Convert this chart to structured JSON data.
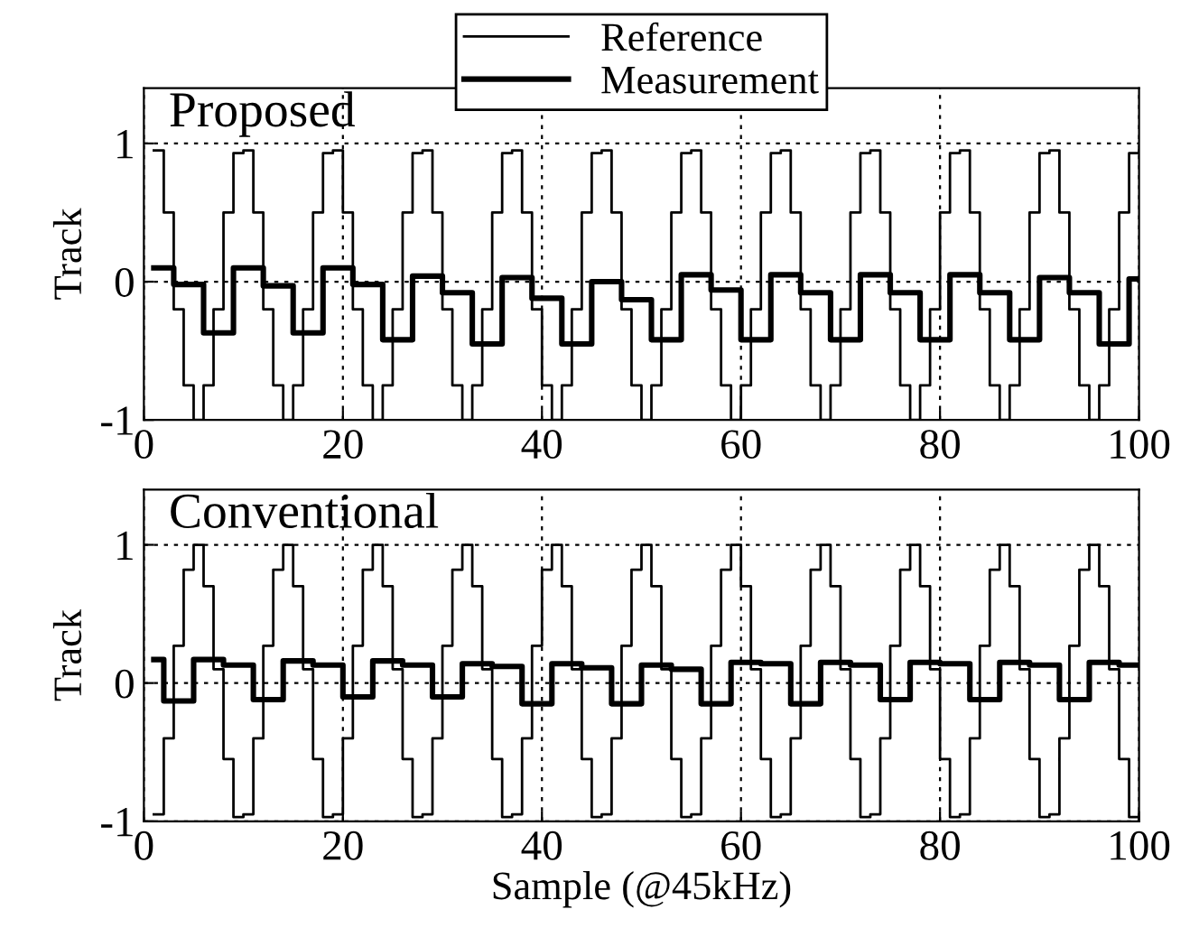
{
  "chart_data": [
    {
      "type": "step",
      "title": "Proposed",
      "ylabel": "Track",
      "xlim": [
        0,
        100
      ],
      "xticks": [
        0,
        20,
        40,
        60,
        80,
        100
      ],
      "ylim": [
        -1,
        1.4
      ],
      "yticks": [
        -1,
        0,
        1
      ],
      "grid": true,
      "legend": "top",
      "x": [
        1,
        2,
        3,
        4,
        5,
        6,
        7,
        8,
        9,
        10,
        11,
        12,
        13,
        14,
        15,
        16,
        17,
        18,
        19,
        20,
        21,
        22,
        23,
        24,
        25,
        26,
        27,
        28,
        29,
        30,
        31,
        32,
        33,
        34,
        35,
        36,
        37,
        38,
        39,
        40,
        41,
        42,
        43,
        44,
        45,
        46,
        47,
        48,
        49,
        50,
        51,
        52,
        53,
        54,
        55,
        56,
        57,
        58,
        59,
        60,
        61,
        62,
        63,
        64,
        65,
        66,
        67,
        68,
        69,
        70,
        71,
        72,
        73,
        74,
        75,
        76,
        77,
        78,
        79,
        80,
        81,
        82,
        83,
        84,
        85,
        86,
        87,
        88,
        89,
        90,
        91,
        92,
        93,
        94,
        95,
        96,
        97,
        98,
        99,
        100
      ],
      "series": [
        {
          "name": "Reference",
          "color": "#000000",
          "values": [
            0.95,
            0.5,
            -0.2,
            -0.75,
            -1,
            -0.75,
            -0.2,
            0.5,
            0.93,
            0.95,
            0.5,
            -0.2,
            -0.75,
            -1,
            -0.75,
            -0.2,
            0.5,
            0.93,
            0.95,
            0.5,
            -0.2,
            -0.75,
            -1,
            -0.75,
            -0.2,
            0.5,
            0.93,
            0.95,
            0.5,
            -0.2,
            -0.75,
            -1,
            -0.75,
            -0.2,
            0.5,
            0.93,
            0.95,
            0.5,
            -0.2,
            -0.75,
            -1,
            -0.75,
            -0.2,
            0.5,
            0.93,
            0.95,
            0.5,
            -0.2,
            -0.75,
            -1,
            -0.75,
            -0.2,
            0.5,
            0.93,
            0.95,
            0.5,
            -0.2,
            -0.75,
            -1,
            -0.75,
            -0.2,
            0.5,
            0.93,
            0.95,
            0.5,
            -0.2,
            -0.75,
            -1,
            -0.75,
            -0.2,
            0.5,
            0.93,
            0.95,
            0.5,
            -0.2,
            -0.75,
            -1,
            -0.75,
            -0.2,
            0.5,
            0.93,
            0.95,
            0.5,
            -0.2,
            -0.75,
            -1,
            -0.75,
            -0.2,
            0.5,
            0.93,
            0.95,
            0.5,
            -0.2,
            -0.75,
            -1,
            -0.75,
            -0.2,
            0.5,
            0.93,
            0.95
          ]
        },
        {
          "name": "Measurement",
          "color": "#000000",
          "values": [
            0.1,
            0.1,
            -0.02,
            -0.02,
            -0.02,
            -0.37,
            -0.37,
            -0.37,
            0.1,
            0.1,
            0.1,
            -0.03,
            -0.03,
            -0.03,
            -0.37,
            -0.37,
            -0.37,
            0.1,
            0.1,
            0.1,
            -0.02,
            -0.02,
            -0.02,
            -0.42,
            -0.42,
            -0.42,
            0.04,
            0.04,
            0.04,
            -0.08,
            -0.08,
            -0.08,
            -0.45,
            -0.45,
            -0.45,
            0.03,
            0.03,
            0.03,
            -0.12,
            -0.12,
            -0.12,
            -0.45,
            -0.45,
            -0.45,
            0.0,
            0.0,
            0.0,
            -0.13,
            -0.13,
            -0.13,
            -0.42,
            -0.42,
            -0.42,
            0.05,
            0.05,
            0.05,
            -0.06,
            -0.06,
            -0.06,
            -0.42,
            -0.42,
            -0.42,
            0.05,
            0.05,
            0.05,
            -0.08,
            -0.08,
            -0.08,
            -0.42,
            -0.42,
            -0.42,
            0.05,
            0.05,
            0.05,
            -0.08,
            -0.08,
            -0.08,
            -0.42,
            -0.42,
            -0.42,
            0.05,
            0.05,
            0.05,
            -0.08,
            -0.08,
            -0.08,
            -0.42,
            -0.42,
            -0.42,
            0.03,
            0.03,
            0.03,
            -0.08,
            -0.08,
            -0.08,
            -0.45,
            -0.45,
            -0.45,
            0.02,
            0.02
          ]
        }
      ]
    },
    {
      "type": "step",
      "title": "Conventional",
      "xlabel": "Sample (@45kHz)",
      "ylabel": "Track",
      "xlim": [
        0,
        100
      ],
      "xticks": [
        0,
        20,
        40,
        60,
        80,
        100
      ],
      "ylim": [
        -1,
        1.4
      ],
      "yticks": [
        -1,
        0,
        1
      ],
      "grid": true,
      "x": [
        1,
        2,
        3,
        4,
        5,
        6,
        7,
        8,
        9,
        10,
        11,
        12,
        13,
        14,
        15,
        16,
        17,
        18,
        19,
        20,
        21,
        22,
        23,
        24,
        25,
        26,
        27,
        28,
        29,
        30,
        31,
        32,
        33,
        34,
        35,
        36,
        37,
        38,
        39,
        40,
        41,
        42,
        43,
        44,
        45,
        46,
        47,
        48,
        49,
        50,
        51,
        52,
        53,
        54,
        55,
        56,
        57,
        58,
        59,
        60,
        61,
        62,
        63,
        64,
        65,
        66,
        67,
        68,
        69,
        70,
        71,
        72,
        73,
        74,
        75,
        76,
        77,
        78,
        79,
        80,
        81,
        82,
        83,
        84,
        85,
        86,
        87,
        88,
        89,
        90,
        91,
        92,
        93,
        94,
        95,
        96,
        97,
        98,
        99,
        100
      ],
      "series": [
        {
          "color": "#000000",
          "values": [
            -0.95,
            -0.4,
            0.27,
            0.82,
            1.0,
            0.7,
            0.1,
            -0.55,
            -0.97,
            -0.95,
            -0.4,
            0.27,
            0.82,
            1.0,
            0.7,
            0.1,
            -0.55,
            -0.97,
            -0.95,
            -0.4,
            0.27,
            0.82,
            1.0,
            0.7,
            0.1,
            -0.55,
            -0.97,
            -0.95,
            -0.4,
            0.27,
            0.82,
            1.0,
            0.7,
            0.1,
            -0.55,
            -0.97,
            -0.95,
            -0.4,
            0.27,
            0.82,
            1.0,
            0.7,
            0.1,
            -0.55,
            -0.97,
            -0.95,
            -0.4,
            0.27,
            0.82,
            1.0,
            0.7,
            0.1,
            -0.55,
            -0.97,
            -0.95,
            -0.4,
            0.27,
            0.82,
            1.0,
            0.7,
            0.1,
            -0.55,
            -0.97,
            -0.95,
            -0.4,
            0.27,
            0.82,
            1.0,
            0.7,
            0.1,
            -0.55,
            -0.97,
            -0.95,
            -0.4,
            0.27,
            0.82,
            1.0,
            0.7,
            0.1,
            -0.55,
            -0.97,
            -0.95,
            -0.4,
            0.27,
            0.82,
            1.0,
            0.7,
            0.1,
            -0.55,
            -0.97,
            -0.95,
            -0.4,
            0.27,
            0.82,
            1.0,
            0.7,
            0.1,
            -0.55,
            -0.97,
            -0.95
          ]
        },
        {
          "color": "#000000",
          "values": [
            0.17,
            -0.13,
            -0.13,
            -0.13,
            0.17,
            0.17,
            0.17,
            0.13,
            0.13,
            0.13,
            -0.12,
            -0.12,
            -0.12,
            0.16,
            0.16,
            0.16,
            0.13,
            0.13,
            0.13,
            -0.1,
            -0.1,
            -0.1,
            0.16,
            0.16,
            0.16,
            0.13,
            0.13,
            0.13,
            -0.1,
            -0.1,
            -0.1,
            0.14,
            0.14,
            0.14,
            0.12,
            0.12,
            0.12,
            -0.15,
            -0.15,
            -0.15,
            0.14,
            0.14,
            0.14,
            0.11,
            0.11,
            0.11,
            -0.15,
            -0.15,
            -0.15,
            0.13,
            0.13,
            0.13,
            0.1,
            0.1,
            0.1,
            -0.15,
            -0.15,
            -0.15,
            0.15,
            0.15,
            0.15,
            0.14,
            0.14,
            0.14,
            -0.15,
            -0.15,
            -0.15,
            0.15,
            0.15,
            0.15,
            0.13,
            0.13,
            0.13,
            -0.12,
            -0.12,
            -0.12,
            0.15,
            0.15,
            0.15,
            0.14,
            0.14,
            0.14,
            -0.12,
            -0.12,
            -0.12,
            0.15,
            0.15,
            0.15,
            0.13,
            0.13,
            0.13,
            -0.12,
            -0.12,
            -0.12,
            0.15,
            0.15,
            0.15,
            0.13,
            0.13,
            0.13
          ]
        }
      ]
    }
  ]
}
